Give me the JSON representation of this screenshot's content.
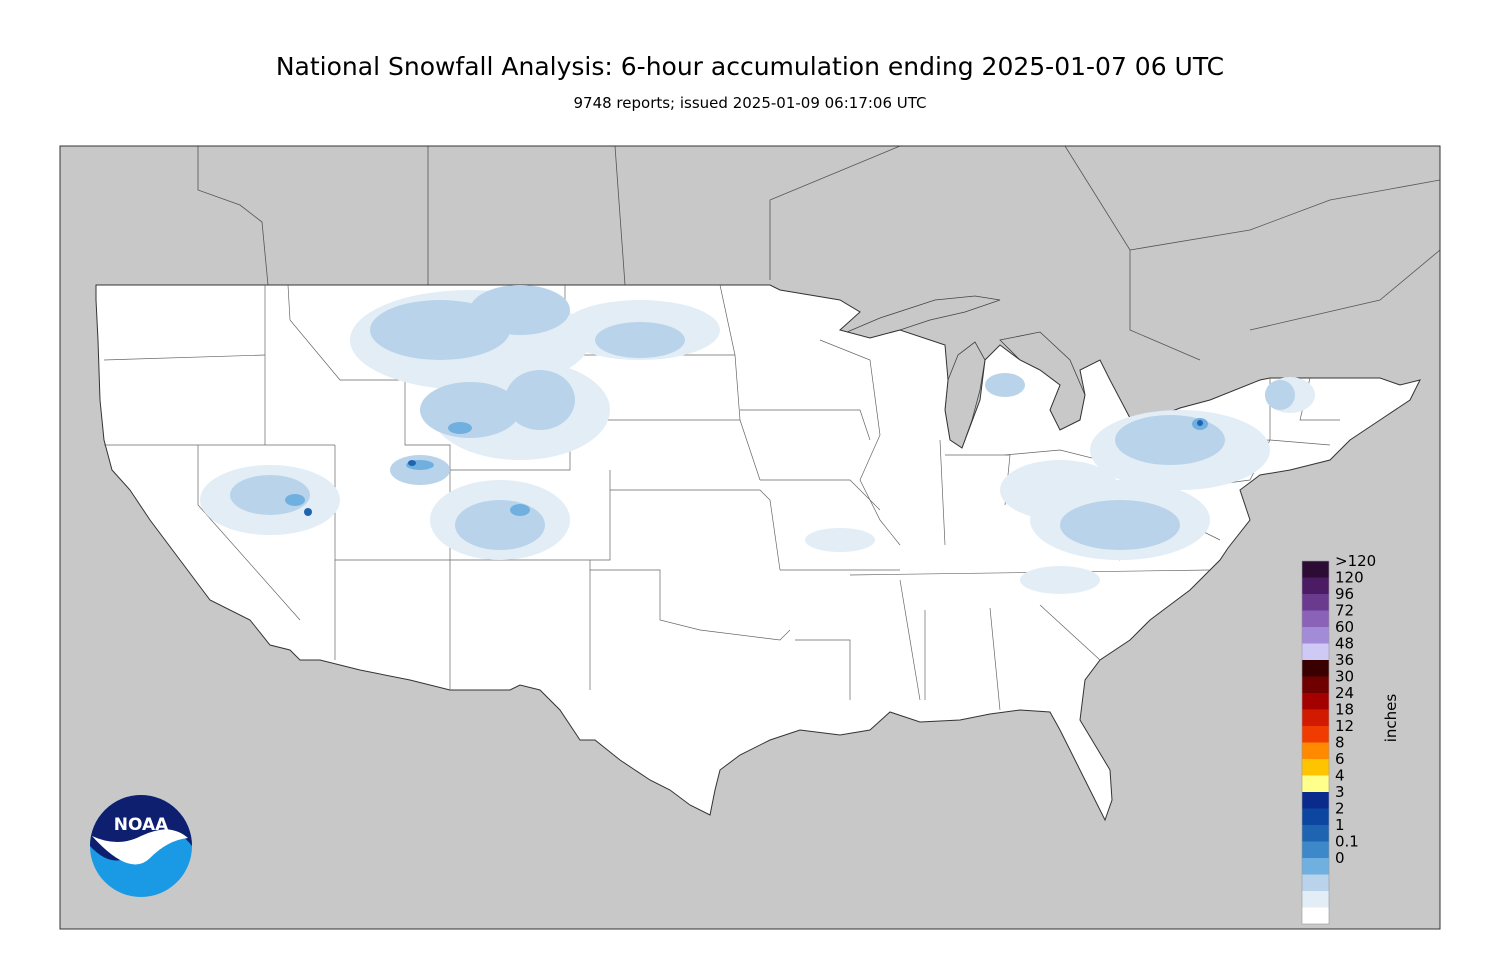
{
  "header": {
    "title": "National Snowfall Analysis: 6-hour accumulation ending 2025-01-07 06 UTC",
    "subtitle": "9748 reports; issued 2025-01-09 06:17:06 UTC"
  },
  "colors": {
    "background_land_outside": "#c8c8c8",
    "us_land": "#ffffff",
    "border": "#555555"
  },
  "legend": {
    "units": "inches",
    "bins": [
      {
        "label": ">120",
        "color": "#2c0b35"
      },
      {
        "label": "120",
        "color": "#4b1b63"
      },
      {
        "label": "96",
        "color": "#6a3a8f"
      },
      {
        "label": "72",
        "color": "#8a62b8"
      },
      {
        "label": "60",
        "color": "#a28cd7"
      },
      {
        "label": "48",
        "color": "#cfc9f5"
      },
      {
        "label": "36",
        "color": "#3a0000"
      },
      {
        "label": "30",
        "color": "#6e0000"
      },
      {
        "label": "24",
        "color": "#a50000"
      },
      {
        "label": "18",
        "color": "#d11a00"
      },
      {
        "label": "12",
        "color": "#f03c00"
      },
      {
        "label": "8",
        "color": "#ff8a00"
      },
      {
        "label": "6",
        "color": "#ffc400"
      },
      {
        "label": "4",
        "color": "#ffff8c"
      },
      {
        "label": "3",
        "color": "#0a2b8c"
      },
      {
        "label": "2",
        "color": "#0c46a0"
      },
      {
        "label": "1",
        "color": "#1f64b0"
      },
      {
        "label": "0.1",
        "color": "#3c88c9"
      },
      {
        "label": "0",
        "color": "#6fb0e0"
      }
    ],
    "extra_bins": [
      "#b9d4ea",
      "#e2edf6",
      "#ffffff"
    ]
  },
  "logo": {
    "text": "NOAA"
  }
}
